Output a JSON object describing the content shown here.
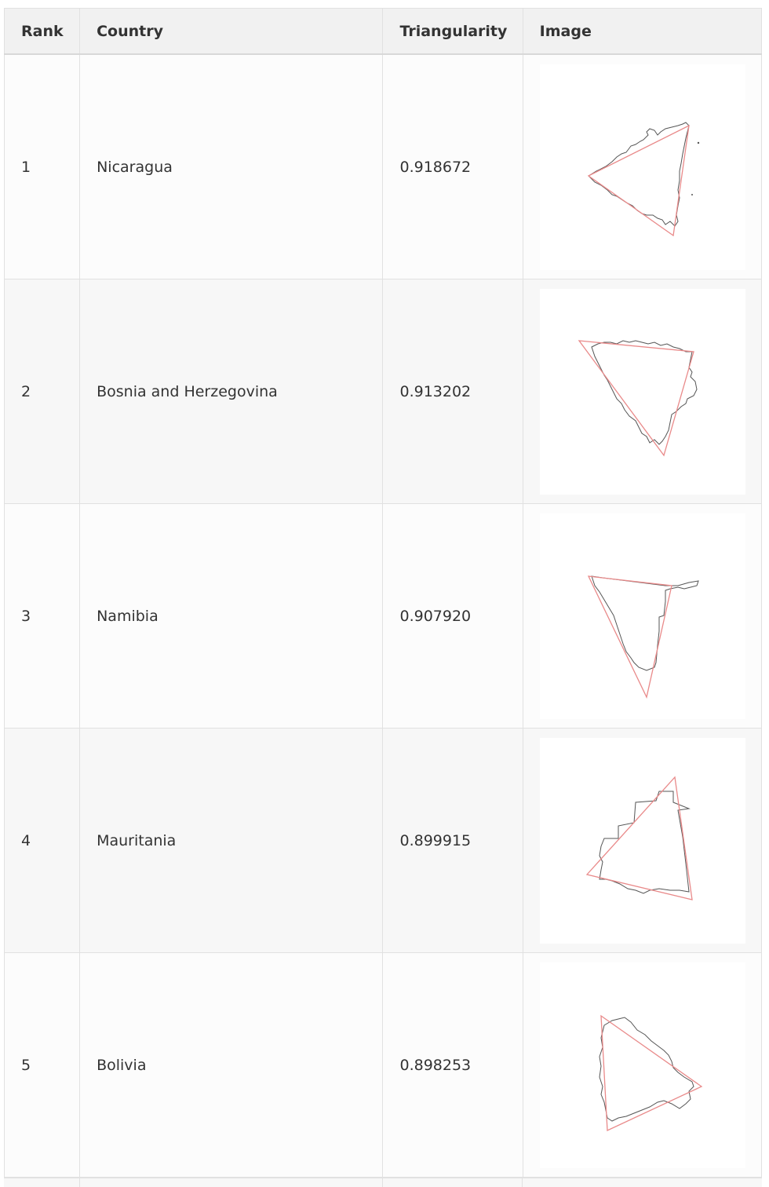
{
  "table": {
    "headers": {
      "rank": "Rank",
      "country": "Country",
      "triangularity": "Triangularity",
      "image": "Image"
    },
    "rows": [
      {
        "rank": "1",
        "country": "Nicaragua",
        "triangularity": "0.918672",
        "image_icon": "nicaragua-outline-with-triangle"
      },
      {
        "rank": "2",
        "country": "Bosnia and Herzegovina",
        "triangularity": "0.913202",
        "image_icon": "bosnia-outline-with-triangle"
      },
      {
        "rank": "3",
        "country": "Namibia",
        "triangularity": "0.907920",
        "image_icon": "namibia-outline-with-triangle"
      },
      {
        "rank": "4",
        "country": "Mauritania",
        "triangularity": "0.899915",
        "image_icon": "mauritania-outline-with-triangle"
      },
      {
        "rank": "5",
        "country": "Bolivia",
        "triangularity": "0.898253",
        "image_icon": "bolivia-outline-with-triangle"
      }
    ]
  },
  "colors": {
    "header_bg": "#f1f1f1",
    "row_odd_bg": "#fcfcfc",
    "row_even_bg": "#f7f7f7",
    "border": "#e1e1e1",
    "triangle_stroke": "#e98a8a",
    "outline_stroke": "#555555"
  }
}
